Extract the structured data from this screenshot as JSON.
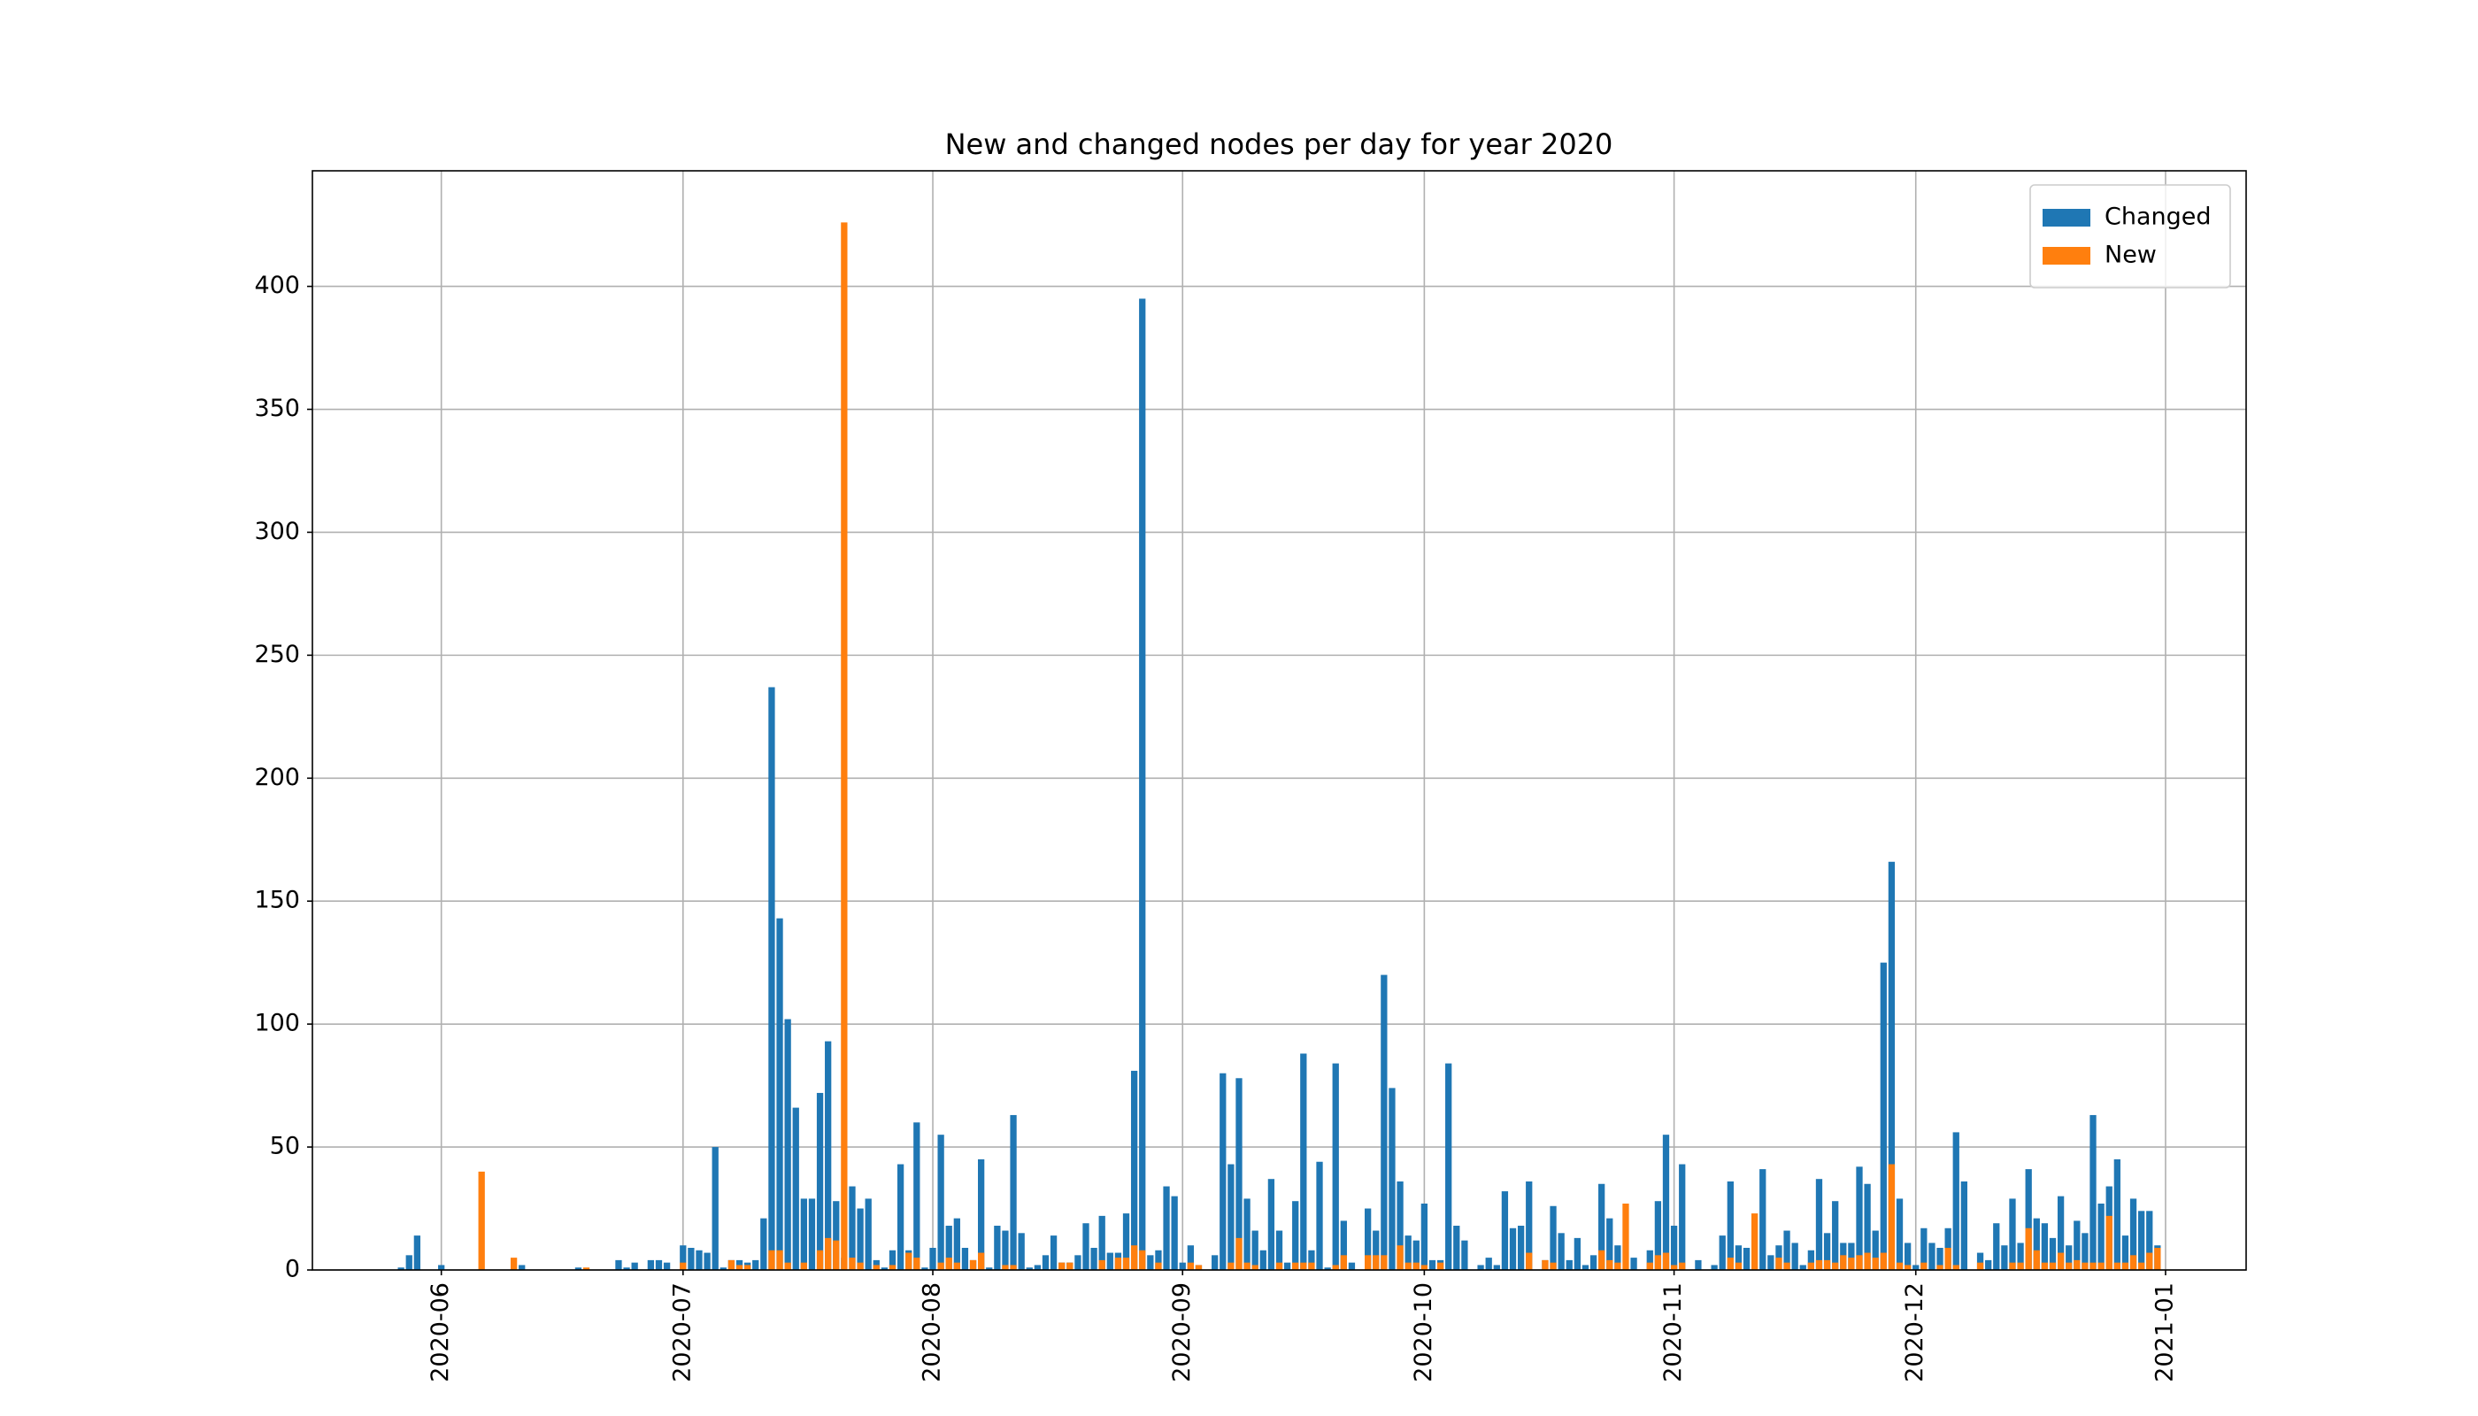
{
  "chart_data": {
    "type": "bar",
    "title": "New and changed nodes per day for year 2020",
    "x": [
      "2020-05-27",
      "2020-05-28",
      "2020-05-29",
      "2020-06-01",
      "2020-06-06",
      "2020-06-10",
      "2020-06-11",
      "2020-06-18",
      "2020-06-19",
      "2020-06-23",
      "2020-06-24",
      "2020-06-25",
      "2020-06-27",
      "2020-06-28",
      "2020-06-29",
      "2020-07-01",
      "2020-07-02",
      "2020-07-03",
      "2020-07-04",
      "2020-07-05",
      "2020-07-06",
      "2020-07-07",
      "2020-07-08",
      "2020-07-09",
      "2020-07-10",
      "2020-07-11",
      "2020-07-12",
      "2020-07-13",
      "2020-07-14",
      "2020-07-15",
      "2020-07-16",
      "2020-07-17",
      "2020-07-18",
      "2020-07-19",
      "2020-07-20",
      "2020-07-21",
      "2020-07-22",
      "2020-07-23",
      "2020-07-24",
      "2020-07-25",
      "2020-07-26",
      "2020-07-27",
      "2020-07-28",
      "2020-07-29",
      "2020-07-30",
      "2020-07-31",
      "2020-08-01",
      "2020-08-02",
      "2020-08-03",
      "2020-08-04",
      "2020-08-05",
      "2020-08-06",
      "2020-08-07",
      "2020-08-08",
      "2020-08-09",
      "2020-08-10",
      "2020-08-11",
      "2020-08-12",
      "2020-08-13",
      "2020-08-14",
      "2020-08-15",
      "2020-08-16",
      "2020-08-17",
      "2020-08-18",
      "2020-08-19",
      "2020-08-20",
      "2020-08-21",
      "2020-08-22",
      "2020-08-23",
      "2020-08-24",
      "2020-08-25",
      "2020-08-26",
      "2020-08-27",
      "2020-08-28",
      "2020-08-29",
      "2020-08-30",
      "2020-08-31",
      "2020-09-01",
      "2020-09-02",
      "2020-09-03",
      "2020-09-05",
      "2020-09-06",
      "2020-09-07",
      "2020-09-08",
      "2020-09-09",
      "2020-09-10",
      "2020-09-11",
      "2020-09-12",
      "2020-09-13",
      "2020-09-14",
      "2020-09-15",
      "2020-09-16",
      "2020-09-17",
      "2020-09-18",
      "2020-09-19",
      "2020-09-20",
      "2020-09-21",
      "2020-09-22",
      "2020-09-24",
      "2020-09-25",
      "2020-09-26",
      "2020-09-27",
      "2020-09-28",
      "2020-09-29",
      "2020-09-30",
      "2020-10-01",
      "2020-10-02",
      "2020-10-03",
      "2020-10-04",
      "2020-10-05",
      "2020-10-06",
      "2020-10-08",
      "2020-10-09",
      "2020-10-10",
      "2020-10-11",
      "2020-10-12",
      "2020-10-13",
      "2020-10-14",
      "2020-10-16",
      "2020-10-17",
      "2020-10-18",
      "2020-10-19",
      "2020-10-20",
      "2020-10-21",
      "2020-10-22",
      "2020-10-23",
      "2020-10-24",
      "2020-10-25",
      "2020-10-26",
      "2020-10-27",
      "2020-10-29",
      "2020-10-30",
      "2020-10-31",
      "2020-11-01",
      "2020-11-02",
      "2020-11-04",
      "2020-11-06",
      "2020-11-07",
      "2020-11-08",
      "2020-11-09",
      "2020-11-10",
      "2020-11-11",
      "2020-11-12",
      "2020-11-13",
      "2020-11-14",
      "2020-11-15",
      "2020-11-16",
      "2020-11-17",
      "2020-11-18",
      "2020-11-19",
      "2020-11-20",
      "2020-11-21",
      "2020-11-22",
      "2020-11-23",
      "2020-11-24",
      "2020-11-25",
      "2020-11-26",
      "2020-11-27",
      "2020-11-28",
      "2020-11-29",
      "2020-11-30",
      "2020-12-01",
      "2020-12-02",
      "2020-12-03",
      "2020-12-04",
      "2020-12-05",
      "2020-12-06",
      "2020-12-07",
      "2020-12-09",
      "2020-12-10",
      "2020-12-11",
      "2020-12-12",
      "2020-12-13",
      "2020-12-14",
      "2020-12-15",
      "2020-12-16",
      "2020-12-17",
      "2020-12-18",
      "2020-12-19",
      "2020-12-20",
      "2020-12-21",
      "2020-12-22",
      "2020-12-23",
      "2020-12-24",
      "2020-12-25",
      "2020-12-26",
      "2020-12-27",
      "2020-12-28",
      "2020-12-29",
      "2020-12-30",
      "2020-12-31"
    ],
    "series": [
      {
        "name": "Changed",
        "color": "#1f77b4",
        "values": [
          1,
          6,
          14,
          2,
          0,
          0,
          2,
          1,
          0,
          4,
          1,
          3,
          4,
          4,
          3,
          10,
          9,
          8,
          7,
          50,
          1,
          4,
          4,
          3,
          4,
          21,
          237,
          143,
          102,
          66,
          29,
          29,
          72,
          93,
          28,
          5,
          34,
          25,
          29,
          4,
          1,
          8,
          43,
          8,
          60,
          1,
          9,
          55,
          18,
          21,
          9,
          4,
          45,
          1,
          18,
          16,
          63,
          15,
          1,
          2,
          6,
          14,
          3,
          3,
          6,
          19,
          9,
          22,
          7,
          7,
          23,
          81,
          395,
          6,
          8,
          34,
          30,
          3,
          10,
          2,
          6,
          80,
          43,
          78,
          29,
          16,
          8,
          37,
          16,
          3,
          28,
          88,
          8,
          44,
          1,
          84,
          20,
          3,
          25,
          16,
          120,
          74,
          36,
          14,
          12,
          27,
          4,
          4,
          84,
          18,
          12,
          2,
          5,
          2,
          32,
          17,
          18,
          36,
          4,
          26,
          15,
          4,
          13,
          2,
          6,
          35,
          21,
          10,
          0,
          5,
          8,
          28,
          55,
          18,
          43,
          4,
          2,
          14,
          36,
          10,
          9,
          0,
          41,
          6,
          10,
          16,
          11,
          2,
          8,
          37,
          15,
          28,
          11,
          11,
          42,
          35,
          16,
          125,
          166,
          29,
          11,
          2,
          17,
          11,
          9,
          17,
          56,
          36,
          7,
          4,
          19,
          10,
          29,
          11,
          41,
          21,
          19,
          13,
          30,
          10,
          20,
          15,
          63,
          27,
          34,
          45,
          14,
          29,
          24,
          24,
          10
        ]
      },
      {
        "name": "New",
        "color": "#ff7f0e",
        "values": [
          0,
          0,
          0,
          0,
          40,
          5,
          0,
          0,
          1,
          0,
          0,
          0,
          0,
          0,
          0,
          3,
          0,
          0,
          0,
          0,
          0,
          4,
          2,
          2,
          0,
          0,
          8,
          8,
          3,
          0,
          3,
          0,
          8,
          13,
          12,
          426,
          5,
          3,
          0,
          2,
          0,
          2,
          0,
          7,
          5,
          0,
          0,
          3,
          5,
          3,
          0,
          4,
          7,
          0,
          0,
          2,
          2,
          0,
          0,
          0,
          0,
          0,
          3,
          3,
          0,
          0,
          0,
          4,
          0,
          5,
          5,
          10,
          8,
          0,
          3,
          0,
          0,
          0,
          3,
          2,
          0,
          0,
          3,
          13,
          3,
          2,
          0,
          0,
          3,
          0,
          3,
          3,
          3,
          0,
          0,
          2,
          6,
          0,
          6,
          6,
          6,
          0,
          10,
          3,
          3,
          2,
          0,
          3,
          0,
          0,
          0,
          0,
          0,
          0,
          0,
          0,
          0,
          7,
          4,
          3,
          0,
          0,
          0,
          0,
          0,
          8,
          4,
          3,
          27,
          0,
          3,
          6,
          7,
          2,
          3,
          0,
          0,
          0,
          5,
          3,
          0,
          23,
          0,
          0,
          5,
          3,
          0,
          0,
          3,
          4,
          4,
          3,
          6,
          5,
          6,
          7,
          5,
          7,
          43,
          3,
          2,
          0,
          3,
          0,
          2,
          9,
          2,
          0,
          3,
          0,
          0,
          0,
          3,
          3,
          17,
          8,
          3,
          3,
          7,
          3,
          4,
          3,
          3,
          3,
          22,
          3,
          3,
          6,
          3,
          7,
          9
        ]
      }
    ],
    "xlim": [
      "2020-05-16",
      "2021-01-11"
    ],
    "xticks": [
      {
        "value": "2020-06-01",
        "label": "2020-06"
      },
      {
        "value": "2020-07-01",
        "label": "2020-07"
      },
      {
        "value": "2020-08-01",
        "label": "2020-08"
      },
      {
        "value": "2020-09-01",
        "label": "2020-09"
      },
      {
        "value": "2020-10-01",
        "label": "2020-10"
      },
      {
        "value": "2020-11-01",
        "label": "2020-11"
      },
      {
        "value": "2020-12-01",
        "label": "2020-12"
      },
      {
        "value": "2021-01-01",
        "label": "2021-01"
      }
    ],
    "ylim": [
      0,
      447
    ],
    "yticks": [
      0,
      50,
      100,
      150,
      200,
      250,
      300,
      350,
      400
    ],
    "grid": true,
    "legend": "upper right"
  }
}
